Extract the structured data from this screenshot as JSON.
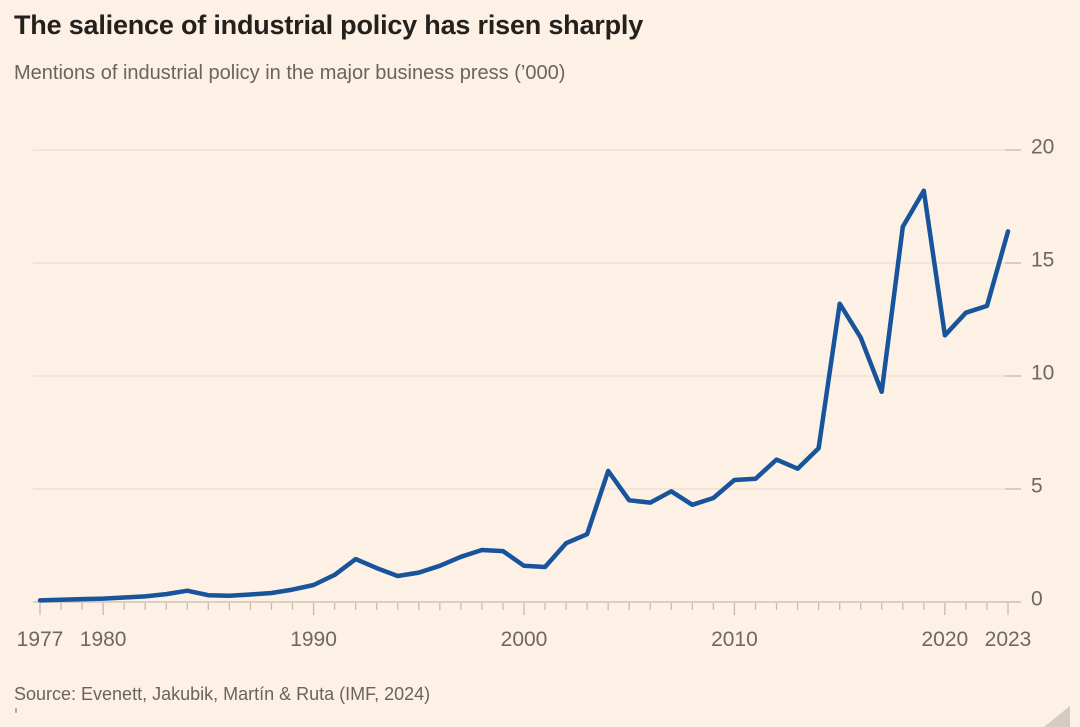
{
  "header": {
    "title": "The salience of industrial policy has risen sharply",
    "subtitle": "Mentions of industrial policy in the major business press (’000)"
  },
  "footer": {
    "source": "Source: Evenett, Jakubik, Martín & Ruta (IMF, 2024)"
  },
  "chart_data": {
    "type": "line",
    "title": "The salience of industrial policy has risen sharply",
    "subtitle": "Mentions of industrial policy in the major business press (’000)",
    "xlabel": "",
    "ylabel": "Mentions (’000)",
    "x": [
      1977,
      1978,
      1979,
      1980,
      1981,
      1982,
      1983,
      1984,
      1985,
      1986,
      1987,
      1988,
      1989,
      1990,
      1991,
      1992,
      1993,
      1994,
      1995,
      1996,
      1997,
      1998,
      1999,
      2000,
      2001,
      2002,
      2003,
      2004,
      2005,
      2006,
      2007,
      2008,
      2009,
      2010,
      2011,
      2012,
      2013,
      2014,
      2015,
      2016,
      2017,
      2018,
      2019,
      2020,
      2021,
      2022,
      2023
    ],
    "series": [
      {
        "name": "Mentions of industrial policy in the major business press (’000)",
        "values": [
          0.07,
          0.1,
          0.13,
          0.15,
          0.2,
          0.25,
          0.35,
          0.5,
          0.3,
          0.28,
          0.33,
          0.4,
          0.55,
          0.75,
          1.2,
          1.9,
          1.5,
          1.15,
          1.3,
          1.6,
          2.0,
          2.3,
          2.25,
          1.6,
          1.55,
          2.6,
          3.0,
          5.8,
          4.5,
          4.4,
          4.9,
          4.3,
          4.6,
          5.4,
          5.45,
          6.3,
          5.9,
          6.8,
          13.2,
          11.7,
          9.3,
          16.6,
          18.2,
          11.8,
          12.8,
          13.1,
          16.4
        ]
      }
    ],
    "ylim": [
      0,
      20
    ],
    "yticks": [
      0,
      5,
      10,
      15,
      20
    ],
    "ytick_side": "right",
    "xtick_years": [
      1977,
      1980,
      1990,
      2000,
      2010,
      2020,
      2023
    ],
    "grid": "horizontal",
    "legend": "none",
    "colors": {
      "background": "#fdf0e4",
      "line": "#17549b",
      "grid": "#ecdecd",
      "axis": "#c6bbae",
      "tick_label": "#6f6862",
      "title": "#23211e",
      "subtitle": "#6b645d"
    }
  }
}
